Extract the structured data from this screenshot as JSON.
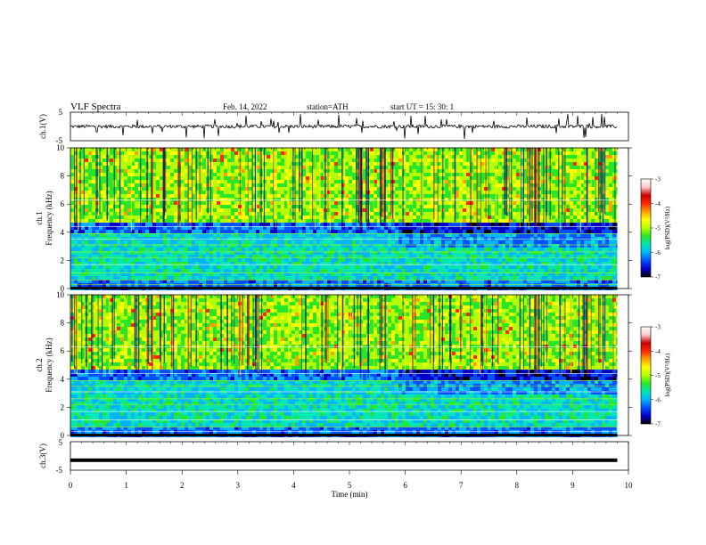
{
  "header": {
    "title": "VLF  Spectra",
    "date": "Feb. 14, 2022",
    "station": "station=ATH",
    "start_ut": "start  UT  =   15: 30: 1"
  },
  "chart_data": [
    {
      "type": "line",
      "name": "ch1-waveform",
      "ylabel": "ch.1(V)",
      "yticks": [
        "5",
        "-5"
      ],
      "ylim": [
        -5,
        5
      ],
      "xlim": [
        0,
        10
      ],
      "baseline": 0,
      "data_extent_min": 9.8
    },
    {
      "type": "heatmap",
      "name": "ch1-spectrogram",
      "ylabel_channel": "ch.1",
      "ylabel": "Frequency (kHz)",
      "yticks": [
        "0",
        "2",
        "4",
        "6",
        "8",
        "10"
      ],
      "ylim": [
        0,
        10
      ],
      "xlim": [
        0,
        10
      ],
      "data_extent_min": 9.8,
      "event_time_min": 5.85
    },
    {
      "type": "heatmap",
      "name": "ch2-spectrogram",
      "ylabel_channel": "ch.2",
      "ylabel": "Frequency (kHz)",
      "yticks": [
        "0",
        "2",
        "4",
        "6",
        "8",
        "10"
      ],
      "ylim": [
        0,
        10
      ],
      "xlim": [
        0,
        10
      ],
      "data_extent_min": 9.8,
      "event_time_min": 5.85
    },
    {
      "type": "line",
      "name": "ch3-waveform",
      "ylabel": "ch.3(V)",
      "yticks": [
        "5",
        "-5"
      ],
      "ylim": [
        -5,
        5
      ],
      "xlim": [
        0,
        10
      ],
      "level": -1.5,
      "data_extent_min": 9.8
    }
  ],
  "x_axis": {
    "label": "Time  (min)",
    "ticks": [
      "0",
      "1",
      "2",
      "3",
      "4",
      "5",
      "6",
      "7",
      "8",
      "9",
      "10"
    ]
  },
  "colorbar": {
    "label": "log(PSD)(V²/Hz)",
    "ticks": [
      "-3",
      "-4",
      "-5",
      "-6",
      "-7"
    ],
    "range": [
      -7,
      -3
    ],
    "colors": [
      "#000000",
      "#0000c8",
      "#0050ff",
      "#00b4ff",
      "#00e6b4",
      "#28e628",
      "#b4ff00",
      "#ffff00",
      "#ffa000",
      "#ff2800",
      "#c80000",
      "#ffc8c8",
      "#ffffff"
    ]
  }
}
